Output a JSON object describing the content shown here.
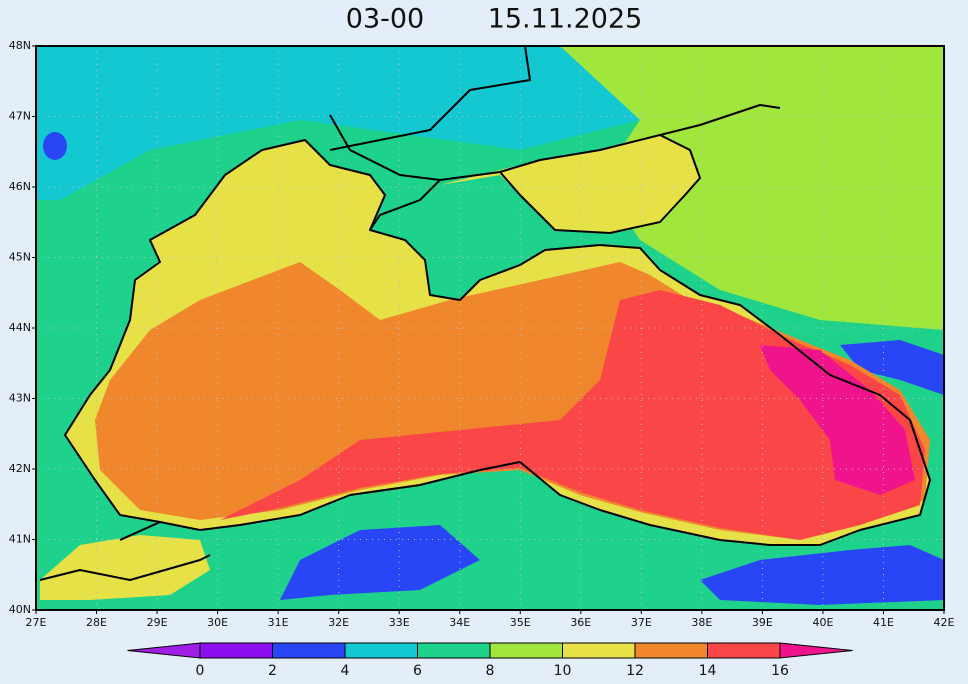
{
  "title": {
    "time": "03-00",
    "date": "15.11.2025"
  },
  "map": {
    "lon_range": [
      27,
      42
    ],
    "lat_range": [
      40,
      48
    ],
    "grid": true,
    "lon_ticks": [
      {
        "value": 27,
        "label": "27E"
      },
      {
        "value": 28,
        "label": "28E"
      },
      {
        "value": 29,
        "label": "29E"
      },
      {
        "value": 30,
        "label": "30E"
      },
      {
        "value": 31,
        "label": "31E"
      },
      {
        "value": 32,
        "label": "32E"
      },
      {
        "value": 33,
        "label": "33E"
      },
      {
        "value": 34,
        "label": "34E"
      },
      {
        "value": 35,
        "label": "35E"
      },
      {
        "value": 36,
        "label": "36E"
      },
      {
        "value": 37,
        "label": "37E"
      },
      {
        "value": 38,
        "label": "38E"
      },
      {
        "value": 39,
        "label": "39E"
      },
      {
        "value": 40,
        "label": "40E"
      },
      {
        "value": 41,
        "label": "41E"
      },
      {
        "value": 42,
        "label": "42E"
      }
    ],
    "lat_ticks": [
      {
        "value": 40,
        "label": "40N"
      },
      {
        "value": 41,
        "label": "41N"
      },
      {
        "value": 42,
        "label": "42N"
      },
      {
        "value": 43,
        "label": "43N"
      },
      {
        "value": 44,
        "label": "44N"
      },
      {
        "value": 45,
        "label": "45N"
      },
      {
        "value": 46,
        "label": "46N"
      },
      {
        "value": 47,
        "label": "47N"
      },
      {
        "value": 48,
        "label": "48N"
      }
    ]
  },
  "colorbar": {
    "ticks": [
      0,
      2,
      4,
      6,
      8,
      10,
      12,
      14,
      16
    ],
    "colors": [
      "#a01ee6",
      "#8c0ff0",
      "#2846f5",
      "#14c8d2",
      "#1ed28c",
      "#a0e63c",
      "#e6e146",
      "#f0872d",
      "#fa4646",
      "#f0148c"
    ]
  }
}
